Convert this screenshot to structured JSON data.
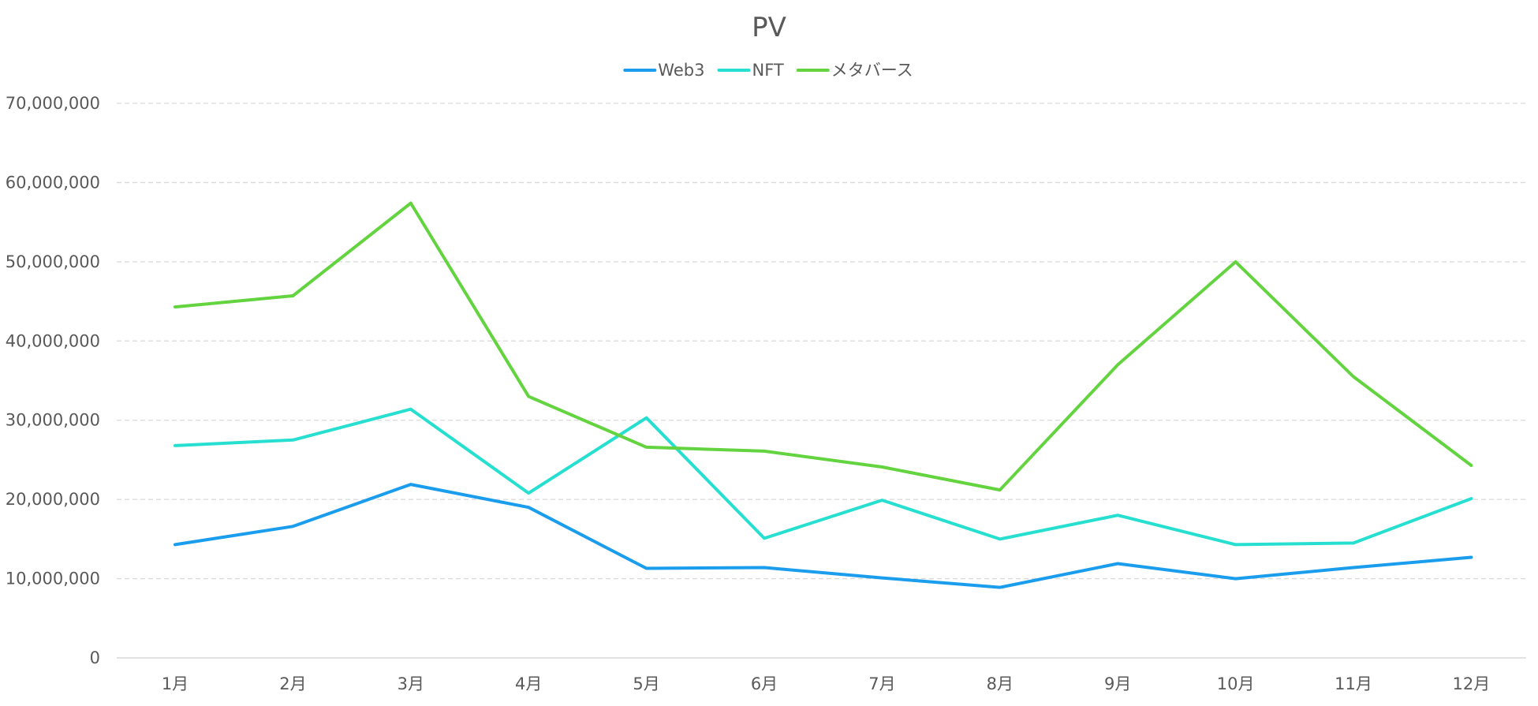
{
  "chart_data": {
    "type": "line",
    "title": "PV",
    "xlabel": "",
    "ylabel": "",
    "categories": [
      "1月",
      "2月",
      "3月",
      "4月",
      "5月",
      "6月",
      "7月",
      "8月",
      "9月",
      "10月",
      "11月",
      "12月"
    ],
    "ylim": [
      0,
      70000000
    ],
    "yticks": [
      0,
      10000000,
      20000000,
      30000000,
      40000000,
      50000000,
      60000000,
      70000000
    ],
    "ytick_labels": [
      "0",
      "10,000,000",
      "20,000,000",
      "30,000,000",
      "40,000,000",
      "50,000,000",
      "60,000,000",
      "70,000,000"
    ],
    "grid": true,
    "legend_position": "top",
    "series": [
      {
        "name": "Web3",
        "color": "#1b9ded",
        "values": [
          14300000,
          16600000,
          21900000,
          19000000,
          11300000,
          11400000,
          10100000,
          8900000,
          11900000,
          10000000,
          11400000,
          12700000
        ]
      },
      {
        "name": "NFT",
        "color": "#27dfd0",
        "values": [
          26800000,
          27500000,
          31400000,
          20800000,
          30300000,
          15100000,
          19900000,
          15000000,
          18000000,
          14300000,
          14500000,
          20100000
        ]
      },
      {
        "name": "メタバース",
        "color": "#63d43f",
        "values": [
          44300000,
          45700000,
          57400000,
          33000000,
          26600000,
          26100000,
          24100000,
          21200000,
          37000000,
          50000000,
          35500000,
          24300000
        ]
      }
    ]
  }
}
